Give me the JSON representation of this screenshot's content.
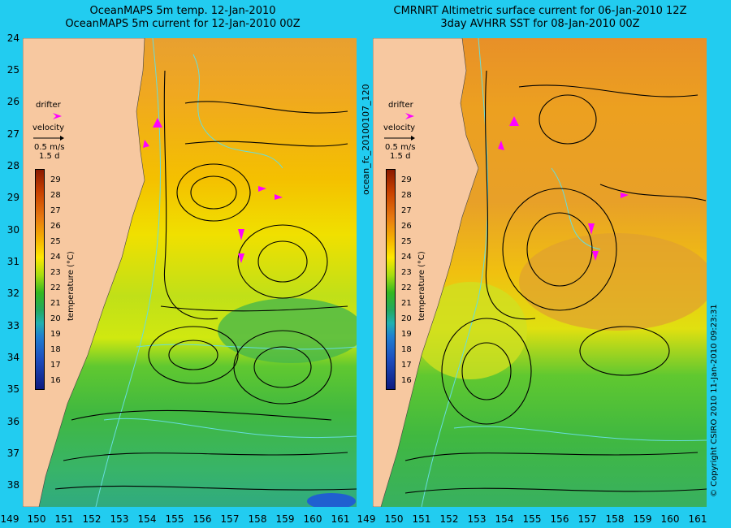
{
  "titles": {
    "left_line1": "OceanMAPS 5m temp. 12-Jan-2010",
    "left_line2": "OceanMAPS 5m current for 12-Jan-2010 00Z",
    "right_line1": "CMRNRT Altimetric surface current for 06-Jan-2010 12Z",
    "right_line2": "3day AVHRR SST for 08-Jan-2010 00Z"
  },
  "axes": {
    "lat_ticks": [
      "24",
      "25",
      "26",
      "27",
      "28",
      "29",
      "30",
      "31",
      "32",
      "33",
      "34",
      "35",
      "36",
      "37",
      "38"
    ],
    "lon_ticks": [
      "149",
      "150",
      "151",
      "152",
      "153",
      "154",
      "155",
      "156",
      "157",
      "158",
      "159",
      "160",
      "161"
    ],
    "lon_ticks_right": [
      "149",
      "150",
      "151",
      "152",
      "153",
      "154",
      "155",
      "156",
      "157",
      "158",
      "159",
      "160",
      "161"
    ]
  },
  "legend": {
    "drifter_label": "drifter",
    "velocity_label": "velocity",
    "scale_speed": "0.5 m/s",
    "scale_time": "1.5 d",
    "colorbar_label": "temperature (°C)",
    "colorbar_ticks": [
      "29",
      "28",
      "27",
      "26",
      "25",
      "24",
      "23",
      "22",
      "21",
      "20",
      "19",
      "18",
      "17",
      "16"
    ]
  },
  "side_labels": {
    "run_id": "ocean_fc_20100107_120",
    "copyright": "© Copyright CSIRO 2010   11-Jan-2010 09:23:31"
  },
  "colors": {
    "background": "#22ccf0",
    "land": "#f7c8a0",
    "drifter": "#ff00ff",
    "contour": "#66dddd"
  }
}
